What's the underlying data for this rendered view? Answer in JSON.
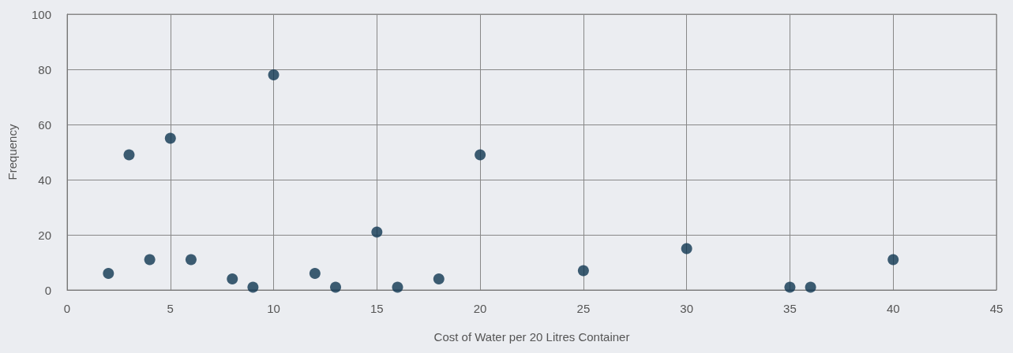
{
  "chart_data": {
    "type": "scatter",
    "xlabel": "Cost of Water per 20 Litres Container",
    "ylabel": "Frequency",
    "x": [
      2,
      3,
      4,
      5,
      6,
      8,
      9,
      10,
      12,
      13,
      15,
      16,
      18,
      20,
      25,
      30,
      35,
      36,
      40
    ],
    "series": [
      {
        "color": "#0f3651",
        "values": [
          6,
          49,
          11,
          55,
          11,
          4,
          1,
          78,
          6,
          1,
          21,
          1,
          4,
          49,
          7,
          15,
          1,
          1,
          11
        ]
      }
    ],
    "xlim": [
      0,
      45
    ],
    "xticks": [
      0,
      5,
      10,
      15,
      20,
      25,
      30,
      35,
      40,
      45
    ],
    "ylim": [
      0,
      100
    ],
    "yticks": [
      0,
      20,
      40,
      60,
      80,
      100
    ],
    "grid": true,
    "marker": "circle"
  }
}
